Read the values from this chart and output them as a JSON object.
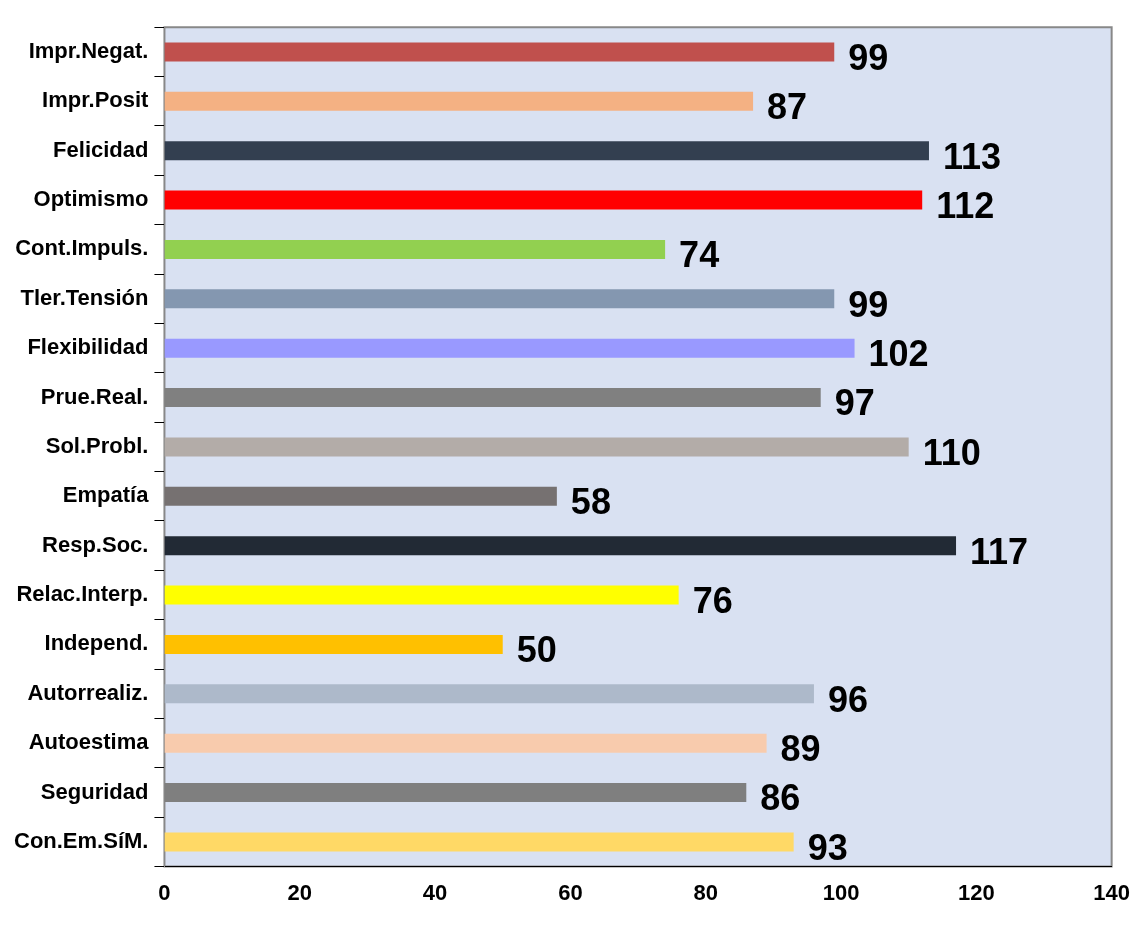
{
  "chart_data": {
    "type": "bar",
    "orientation": "horizontal",
    "categories": [
      "Impr.Negat.",
      "Impr.Posit",
      "Felicidad",
      "Optimismo",
      "Cont.Impuls.",
      "Tler.Tensión",
      "Flexibilidad",
      "Prue.Real.",
      "Sol.Probl.",
      "Empatía",
      "Resp.Soc.",
      "Relac.Interp.",
      "Independ.",
      "Autorrealiz.",
      "Autoestima",
      "Seguridad",
      "Con.Em.SíM."
    ],
    "values": [
      99,
      87,
      113,
      112,
      74,
      99,
      102,
      97,
      110,
      58,
      117,
      76,
      50,
      96,
      89,
      86,
      93
    ],
    "colors": [
      "#c0504d",
      "#f4b183",
      "#333f50",
      "#ff0000",
      "#92d050",
      "#8497b0",
      "#9999ff",
      "#808080",
      "#b3aca8",
      "#767171",
      "#222a35",
      "#ffff00",
      "#ffc000",
      "#adb9ca",
      "#f8cbad",
      "#7f7f7f",
      "#ffd966"
    ],
    "xlim": [
      0,
      140
    ],
    "xticks": [
      0,
      20,
      40,
      60,
      80,
      100,
      120,
      140
    ],
    "grid": false,
    "data_labels": true,
    "legend": false
  }
}
